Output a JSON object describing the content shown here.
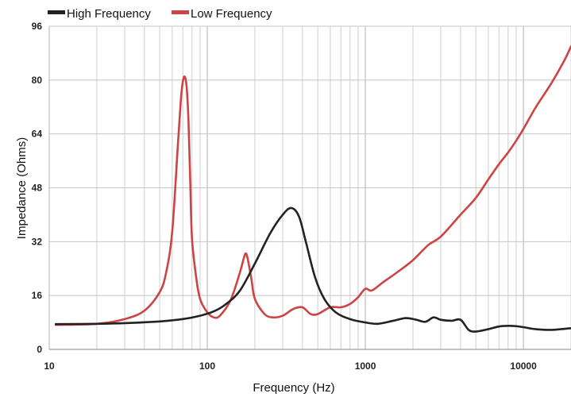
{
  "chart_data": {
    "type": "line",
    "xlabel": "Frequency (Hz)",
    "ylabel": "Impedance (Ohms)",
    "x_scale": "log",
    "xlim": [
      10,
      20000
    ],
    "ylim": [
      0,
      96
    ],
    "x_ticks": [
      "10",
      "100",
      "1000",
      "10000"
    ],
    "y_ticks": [
      "0",
      "16",
      "32",
      "48",
      "64",
      "80",
      "96"
    ],
    "grid": true,
    "legend_position": "top-left",
    "series": [
      {
        "name": "High Frequency",
        "color": "#222222",
        "x": [
          11,
          20,
          30,
          50,
          70,
          90,
          110,
          130,
          160,
          200,
          250,
          300,
          340,
          380,
          420,
          480,
          550,
          650,
          800,
          1000,
          1200,
          1500,
          1800,
          2100,
          2400,
          2700,
          3000,
          3500,
          4000,
          4500,
          5000,
          6000,
          7000,
          8000,
          9000,
          10000,
          12000,
          15000,
          20000
        ],
        "y": [
          7.5,
          7.6,
          7.8,
          8.3,
          9.0,
          10.0,
          11.3,
          13.3,
          17.3,
          25.5,
          34.5,
          40.0,
          42.0,
          39.5,
          32.0,
          21.5,
          15.0,
          11.0,
          9.0,
          8.0,
          7.6,
          8.5,
          9.3,
          8.8,
          8.2,
          9.5,
          8.8,
          8.5,
          8.8,
          5.8,
          5.3,
          6.0,
          6.8,
          7.0,
          6.9,
          6.6,
          6.0,
          5.8,
          6.3
        ]
      },
      {
        "name": "Low Frequency",
        "color": "#cc4444",
        "x": [
          11,
          20,
          30,
          40,
          50,
          55,
          60,
          65,
          68,
          70,
          72,
          74,
          76,
          78,
          80,
          85,
          90,
          100,
          110,
          120,
          140,
          160,
          170,
          175,
          180,
          190,
          200,
          230,
          260,
          300,
          350,
          400,
          450,
          500,
          600,
          700,
          800,
          900,
          1000,
          1100,
          1300,
          1600,
          2000,
          2500,
          3000,
          4000,
          5000,
          6000,
          7000,
          8000,
          9000,
          10000,
          12000,
          15000,
          18000,
          20000
        ],
        "y": [
          7.3,
          7.6,
          9.0,
          11.5,
          17.0,
          23.0,
          35.0,
          60.0,
          74.0,
          79.5,
          81.0,
          78.0,
          68.0,
          50.0,
          33.0,
          21.5,
          15.0,
          11.0,
          9.5,
          10.0,
          14.5,
          22.5,
          27.0,
          28.5,
          27.0,
          21.0,
          15.0,
          10.5,
          9.5,
          10.0,
          12.0,
          12.5,
          10.5,
          10.5,
          12.5,
          12.5,
          13.5,
          15.5,
          18.0,
          17.5,
          20.0,
          23.0,
          26.5,
          31.0,
          33.5,
          40.0,
          45.0,
          50.5,
          55.0,
          58.5,
          62.0,
          65.5,
          72.0,
          79.0,
          85.5,
          90.0
        ]
      }
    ]
  }
}
